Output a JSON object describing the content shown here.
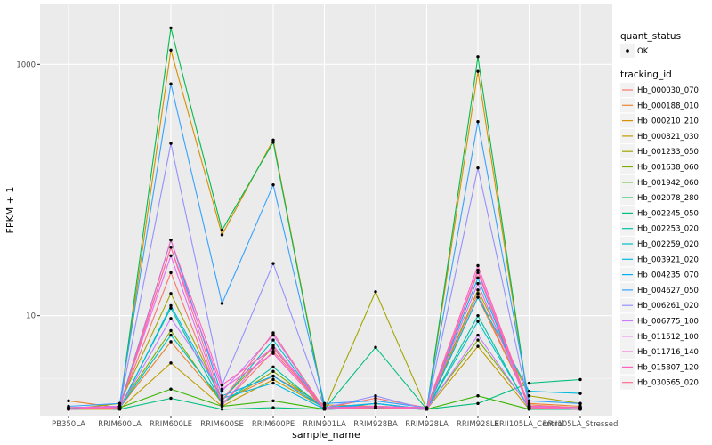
{
  "chart_data": {
    "type": "line",
    "title": "",
    "xlabel": "sample_name",
    "ylabel": "FPKM + 1",
    "y_scale": "log10",
    "ylim": [
      1.6,
      3000
    ],
    "y_ticks": [
      10,
      1000
    ],
    "y_tick_labels": [
      "10",
      "1000"
    ],
    "categories": [
      "PB350LA",
      "RRIM600LA",
      "RRIM600LE",
      "RRIM600SE",
      "RRIM600PE",
      "RRIM901LA",
      "RRIM928BA",
      "RRIM928LA",
      "RRIM928LE",
      "RRII105LA_Control",
      "RRII105LA_Stressed"
    ],
    "legend_quant": {
      "title": "quant_status",
      "entries": [
        {
          "label": "OK",
          "marker": "point"
        }
      ]
    },
    "legend_series_title": "tracking_id",
    "series": [
      {
        "name": "Hb_000030_070",
        "color": "#F8766D",
        "values": [
          1.85,
          1.9,
          22,
          1.95,
          5.2,
          1.85,
          2.2,
          1.85,
          15,
          1.95,
          1.85
        ]
      },
      {
        "name": "Hb_000188_010",
        "color": "#EA8331",
        "values": [
          2.1,
          1.85,
          6.2,
          2.05,
          3.3,
          1.95,
          1.9,
          1.8,
          14,
          2.0,
          1.9
        ]
      },
      {
        "name": "Hb_000210_210",
        "color": "#D89000",
        "values": [
          1.85,
          1.8,
          1300,
          44,
          250,
          1.85,
          1.85,
          1.8,
          880,
          1.85,
          1.8
        ]
      },
      {
        "name": "Hb_000821_030",
        "color": "#C09B00",
        "values": [
          1.8,
          1.8,
          4.2,
          1.9,
          3.1,
          1.85,
          2.0,
          1.8,
          5.7,
          1.8,
          1.8
        ]
      },
      {
        "name": "Hb_001233_050",
        "color": "#A3A500",
        "values": [
          1.8,
          2.0,
          15,
          2.15,
          5.6,
          1.8,
          15.5,
          1.8,
          16,
          2.3,
          2.0
        ]
      },
      {
        "name": "Hb_001638_060",
        "color": "#7CAE00",
        "values": [
          1.85,
          1.9,
          7.6,
          2.0,
          3.6,
          1.85,
          1.9,
          1.85,
          6.4,
          1.9,
          1.85
        ]
      },
      {
        "name": "Hb_001942_060",
        "color": "#39B600",
        "values": [
          1.8,
          1.85,
          2.6,
          1.9,
          2.1,
          1.8,
          1.85,
          1.8,
          2.3,
          1.8,
          1.8
        ]
      },
      {
        "name": "Hb_002078_280",
        "color": "#00BB4E",
        "values": [
          1.8,
          1.85,
          1950,
          48,
          240,
          1.8,
          1.85,
          1.8,
          1150,
          1.85,
          1.85
        ]
      },
      {
        "name": "Hb_002245_050",
        "color": "#00BF7D",
        "values": [
          1.85,
          1.8,
          2.2,
          1.8,
          1.85,
          1.8,
          5.6,
          1.8,
          2.0,
          2.9,
          3.1
        ]
      },
      {
        "name": "Hb_002253_020",
        "color": "#00C1A3",
        "values": [
          1.8,
          1.85,
          11.5,
          2.0,
          3.9,
          1.8,
          1.85,
          1.8,
          10,
          1.8,
          1.8
        ]
      },
      {
        "name": "Hb_002259_020",
        "color": "#00BFC4",
        "values": [
          1.8,
          1.85,
          7,
          2.1,
          6.4,
          1.8,
          2.0,
          1.8,
          9,
          1.85,
          1.8
        ]
      },
      {
        "name": "Hb_003921_020",
        "color": "#00BAE0",
        "values": [
          1.85,
          1.8,
          12,
          2.2,
          2.9,
          1.8,
          1.85,
          1.8,
          14,
          2.5,
          2.4
        ]
      },
      {
        "name": "Hb_004235_070",
        "color": "#00B0F6",
        "values": [
          1.8,
          1.9,
          40,
          2.3,
          3.3,
          1.85,
          2.0,
          1.8,
          20,
          1.9,
          1.85
        ]
      },
      {
        "name": "Hb_004627_050",
        "color": "#35A2FF",
        "values": [
          1.9,
          2.0,
          700,
          12.5,
          110,
          2.0,
          2.1,
          1.85,
          350,
          2.1,
          2.0
        ]
      },
      {
        "name": "Hb_006261_020",
        "color": "#9590FF",
        "values": [
          1.85,
          1.9,
          235,
          2.8,
          26,
          1.85,
          2.3,
          1.8,
          150,
          1.9,
          1.85
        ]
      },
      {
        "name": "Hb_006775_100",
        "color": "#C77CFF",
        "values": [
          1.8,
          1.85,
          9.5,
          2.5,
          7,
          1.8,
          1.9,
          1.8,
          7,
          1.85,
          1.8
        ]
      },
      {
        "name": "Hb_011512_100",
        "color": "#E76BF3",
        "values": [
          1.85,
          1.9,
          30,
          1.95,
          5.8,
          1.85,
          1.9,
          1.8,
          18,
          1.85,
          1.85
        ]
      },
      {
        "name": "Hb_011716_140",
        "color": "#FA62DB",
        "values": [
          1.8,
          1.85,
          35,
          2.6,
          5,
          1.8,
          1.9,
          1.8,
          23,
          1.9,
          1.85
        ]
      },
      {
        "name": "Hb_015807_120",
        "color": "#FF62BC",
        "values": [
          1.85,
          1.85,
          40,
          2.8,
          5.5,
          1.85,
          1.9,
          1.85,
          25,
          1.9,
          1.85
        ]
      },
      {
        "name": "Hb_030565_020",
        "color": "#FF6C91",
        "values": [
          1.8,
          1.85,
          35,
          2.1,
          7.3,
          1.8,
          1.85,
          1.8,
          22,
          1.85,
          1.8
        ]
      }
    ]
  }
}
